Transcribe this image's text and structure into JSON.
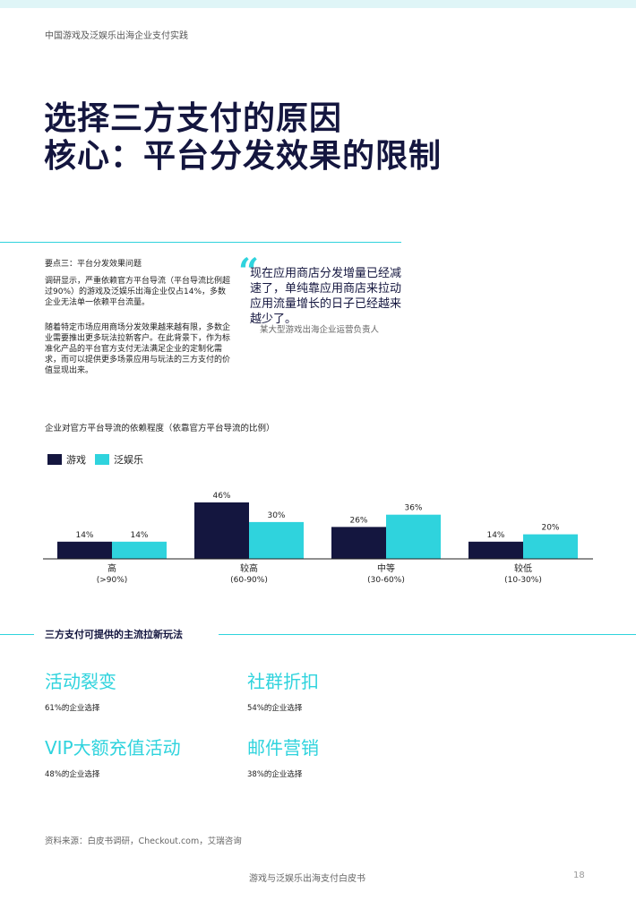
{
  "header": {
    "label": "中国游戏及泛娱乐出海企业支付实践"
  },
  "title": {
    "line1": "选择三方支付的原因",
    "line2": "核心：平台分发效果的限制"
  },
  "keypoint": {
    "title": "要点三：平台分发效果问题",
    "p1": "调研显示，严重依赖官方平台导流（平台导流比例超过90%）的游戏及泛娱乐出海企业仅占14%，多数企业无法单一依赖平台流量。",
    "p2": "随着特定市场应用商场分发效果越来越有限，多数企业需要推出更多玩法拉新客户。在此背景下，作为标准化产品的平台官方支付无法满足企业的定制化需求，而可以提供更多场景应用与玩法的三方支付的价值显现出来。"
  },
  "quote": {
    "mark": "“",
    "text": "现在应用商店分发增量已经减速了，单纯靠应用商店来拉动应用流量增长的日子已经越来越少了。",
    "attribution": "某大型游戏出海企业运营负责人"
  },
  "chart_data": {
    "type": "bar",
    "title": "企业对官方平台导流的依赖程度（依靠官方平台导流的比例）",
    "categories": [
      "高",
      "较高",
      "中等",
      "较低"
    ],
    "category_ranges": [
      "(>90%)",
      "(60-90%)",
      "(30-60%)",
      "(10-30%)"
    ],
    "series": [
      {
        "name": "游戏",
        "values": [
          14,
          46,
          26,
          14
        ],
        "color": "#14163f"
      },
      {
        "name": "泛娱乐",
        "values": [
          14,
          30,
          36,
          20
        ],
        "color": "#2fd3dd"
      }
    ],
    "value_suffix": "%",
    "ylim": [
      0,
      50
    ],
    "grid": false,
    "legend": "top-left"
  },
  "plays": {
    "section_title": "三方支付可提供的主流拉新玩法",
    "items": [
      {
        "name": "活动裂变",
        "pct": "61%的企业选择"
      },
      {
        "name": "社群折扣",
        "pct": "54%的企业选择"
      },
      {
        "name": "VIP大额充值活动",
        "pct": "48%的企业选择"
      },
      {
        "name": "邮件营销",
        "pct": "38%的企业选择"
      }
    ]
  },
  "source": "资料来源：白皮书调研，Checkout.com，艾瑞咨询",
  "footer": {
    "title": "游戏与泛娱乐出海支付白皮书",
    "page": "18"
  },
  "colors": {
    "accent": "#2fd3dd",
    "navy": "#14163f"
  }
}
